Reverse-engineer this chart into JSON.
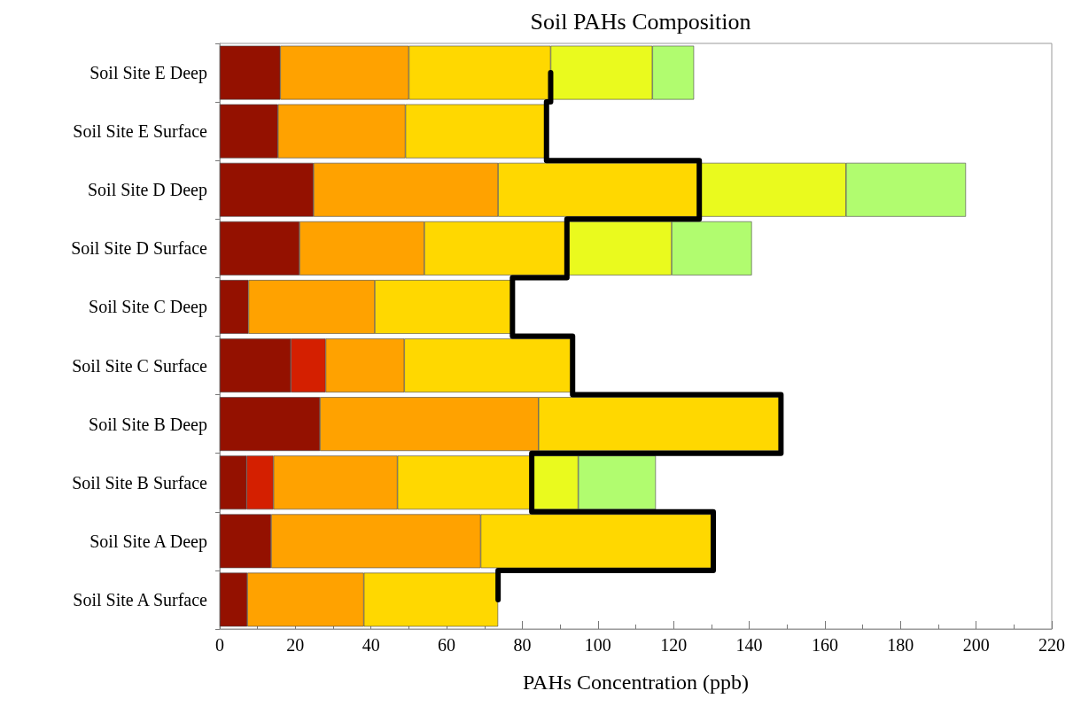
{
  "chart_data": {
    "type": "bar",
    "orientation": "horizontal",
    "stacked": true,
    "title": "Soil PAHs Composition",
    "xlabel": "PAHs Concentration (ppb)",
    "categories": [
      "Soil Site E Deep",
      "Soil Site E Surface",
      "Soil Site D Deep",
      "Soil Site D Surface",
      "Soil Site C Deep",
      "Soil Site C Surface",
      "Soil Site B Deep",
      "Soil Site B Surface",
      "Soil Site A Deep",
      "Soil Site A Surface"
    ],
    "series": [
      {
        "color": "#941100",
        "values": [
          16.0,
          15.4,
          24.8,
          21.1,
          7.6,
          18.8,
          26.5,
          7.1,
          13.6,
          7.3
        ]
      },
      {
        "color": "#d41f00",
        "values": [
          null,
          null,
          null,
          null,
          null,
          9.2,
          null,
          7.1,
          null,
          null
        ]
      },
      {
        "color": "#ffa200",
        "values": [
          34.0,
          33.7,
          48.8,
          33.0,
          33.4,
          20.8,
          57.8,
          32.8,
          55.4,
          30.8
        ]
      },
      {
        "color": "#ffd800",
        "values": [
          37.5,
          37.3,
          53.2,
          37.7,
          36.4,
          44.5,
          64.1,
          35.5,
          61.5,
          35.5
        ]
      },
      {
        "color": "#eafa1e",
        "values": [
          26.9,
          null,
          38.8,
          27.7,
          null,
          null,
          null,
          12.3,
          null,
          null
        ]
      },
      {
        "color": "#b1fc6f",
        "values": [
          11.0,
          null,
          31.7,
          21.2,
          null,
          null,
          null,
          20.5,
          null,
          null
        ]
      },
      {
        "type": "step",
        "color": "#000000",
        "values": [
          87.5,
          86.4,
          126.8,
          91.8,
          77.4,
          93.3,
          148.4,
          82.5,
          130.5,
          73.6
        ]
      }
    ],
    "xlim": [
      0,
      220
    ],
    "xticks": [
      0,
      20,
      40,
      60,
      80,
      100,
      120,
      140,
      160,
      180,
      200,
      220
    ],
    "line_style": "solid",
    "marker": "none"
  }
}
